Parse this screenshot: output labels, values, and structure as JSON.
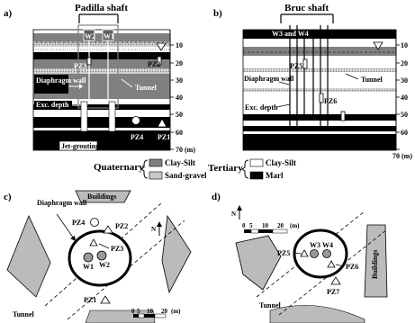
{
  "panel_labels": [
    "a)",
    "b)",
    "c)",
    "d)"
  ],
  "panel_a": {
    "title": "Padilla shaft",
    "wells": [
      "W2",
      "W1"
    ],
    "piezometers": [
      "PZ3",
      "PZ2",
      "PZ4",
      "PZ1"
    ],
    "labels": {
      "diaphragm_wall": "Diaphragm wall",
      "tunnel": "Tunnel",
      "exc_depth": "Exc. depth",
      "jet_grouting": "Jet-grouting"
    }
  },
  "panel_b": {
    "title": "Bruc shaft",
    "wells": "W3 and W4",
    "piezometers": [
      "PZ5",
      "PZ6",
      "PZ7"
    ],
    "labels": {
      "diaphragm_wall": "Diaphragm wall",
      "tunnel": "Tunnel",
      "exc_depth": "Exc. depth"
    }
  },
  "depth_axis": {
    "ticks": [
      "10",
      "20",
      "30",
      "40",
      "50",
      "60"
    ],
    "last_tick": "70 (m)"
  },
  "legend": {
    "quaternary": "Quaternary",
    "quaternary_items": [
      "Clay-Silt",
      "Sand-gravel"
    ],
    "tertiary": "Tertiary",
    "tertiary_items": [
      "Clay-Silt",
      "Marl"
    ],
    "colors": {
      "quat_clay_silt": "#808080",
      "sand_gravel": "#c8c8c8",
      "tert_clay_silt": "#ffffff",
      "marl": "#000000"
    }
  },
  "panel_c": {
    "buildings": "Buildings",
    "diaphragm_wall": "Diaphragm wall",
    "piezometers": [
      "PZ4",
      "PZ2",
      "PZ3",
      "PZ1"
    ],
    "wells": [
      "W1",
      "W2"
    ],
    "tunnel": "Tunnel",
    "north": "N",
    "scale": [
      "0",
      "5",
      "10",
      "20"
    ],
    "scale_unit": "(m)"
  },
  "panel_d": {
    "buildings": "Buildings",
    "piezometers": [
      "PZ5",
      "PZ6",
      "PZ7"
    ],
    "wells": [
      "W3",
      "W4"
    ],
    "tunnel": "Tunnel",
    "north": "N",
    "scale": [
      "0",
      "5",
      "10",
      "20"
    ],
    "scale_unit": "(m)"
  }
}
